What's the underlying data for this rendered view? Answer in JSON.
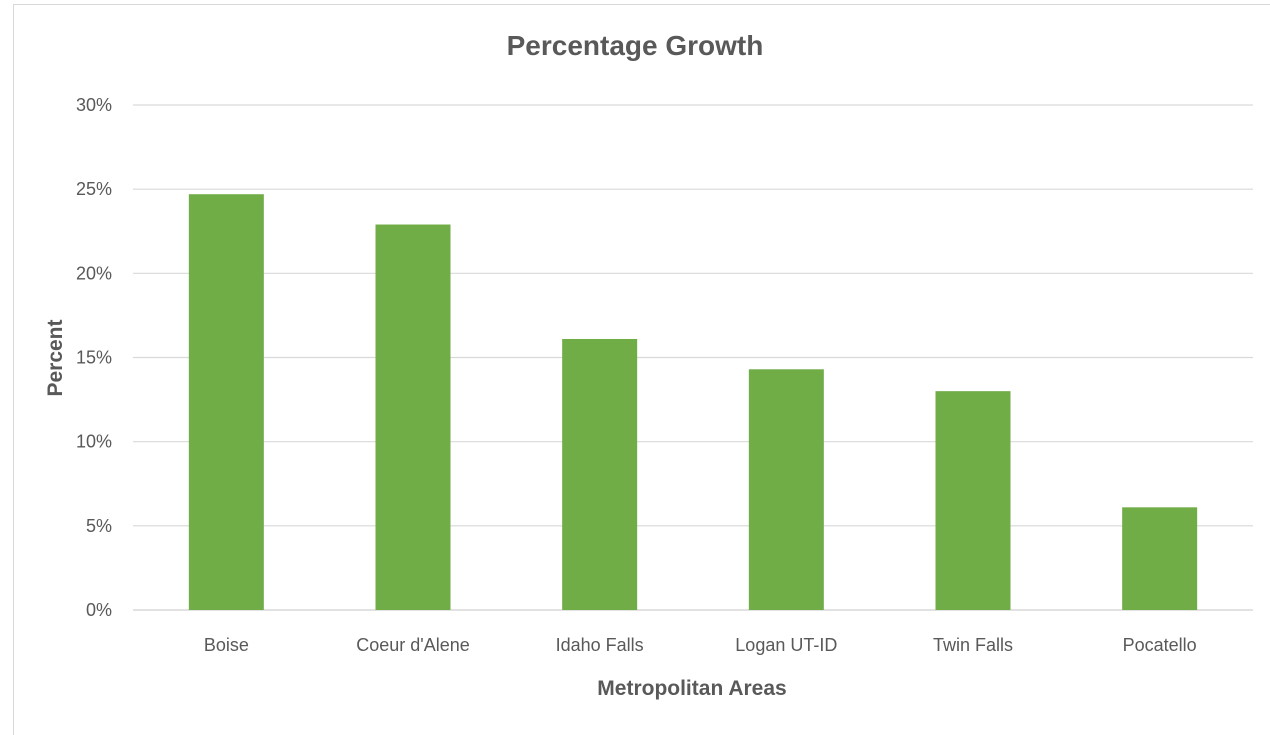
{
  "chart_data": {
    "type": "bar",
    "title": "Percentage Growth",
    "xlabel": "Metropolitan Areas",
    "ylabel": "Percent",
    "categories": [
      "Boise",
      "Coeur d'Alene",
      "Idaho Falls",
      "Logan UT-ID",
      "Twin Falls",
      "Pocatello"
    ],
    "values": [
      24.7,
      22.9,
      16.1,
      14.3,
      13.0,
      6.1
    ],
    "ylim": [
      0,
      30
    ],
    "yticks": [
      "0%",
      "5%",
      "10%",
      "15%",
      "20%",
      "25%",
      "30%"
    ],
    "grid": true,
    "legend": "none",
    "bar_color": "#70ad47",
    "grid_color": "#d9d9d9"
  }
}
